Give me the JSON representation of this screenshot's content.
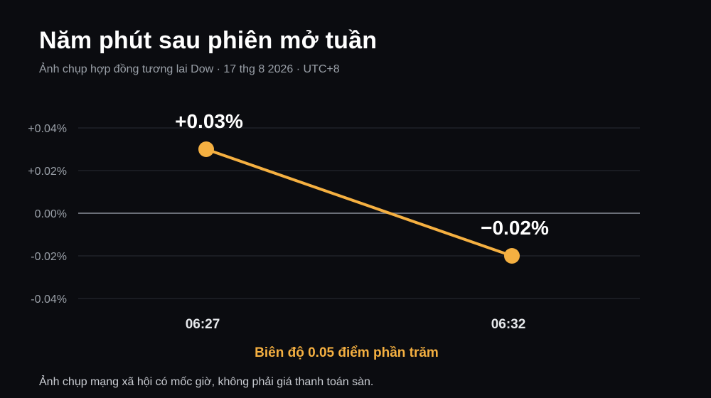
{
  "header": {
    "title": "Năm phút sau phiên mở tuần",
    "subtitle": "Ảnh chụp hợp đồng tương lai Dow · 17 thg 8 2026 · UTC+8"
  },
  "caption": "Biên độ 0.05 điểm phần trăm",
  "footnote": "Ảnh chụp mạng xã hội có mốc giờ, không phải giá thanh toán sàn.",
  "colors": {
    "background": "#0b0c10",
    "series": "#f5b041",
    "grid": "#2a2c33",
    "zero_line": "#6b6f78"
  },
  "chart_data": {
    "type": "line",
    "x": [
      "06:27",
      "06:32"
    ],
    "y": [
      0.03,
      -0.02
    ],
    "data_labels": [
      "+0.03%",
      "−0.02%"
    ],
    "y_ticks": [
      0.04,
      0.02,
      0.0,
      -0.02,
      -0.04
    ],
    "y_tick_labels": [
      "+0.04%",
      "+0.02%",
      "0.00%",
      "-0.02%",
      "-0.04%"
    ],
    "ylim": [
      -0.04,
      0.04
    ],
    "unit": "%",
    "grid": true,
    "legend": "none"
  }
}
